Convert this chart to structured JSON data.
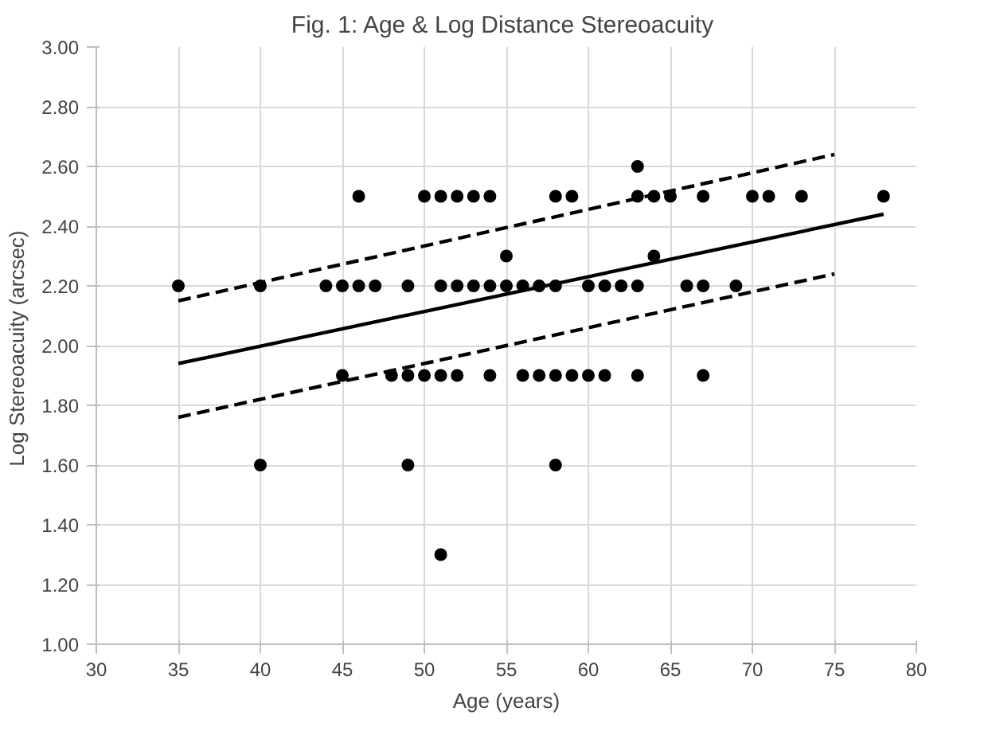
{
  "chart_data": {
    "type": "scatter",
    "title": "Fig. 1: Age & Log Distance  Stereoacuity",
    "xlabel": "Age (years)",
    "ylabel": "Log  Stereoacuity (arcsec)",
    "xlim": [
      30,
      80
    ],
    "xticks": [
      30,
      35,
      40,
      45,
      50,
      55,
      60,
      65,
      70,
      75,
      80
    ],
    "ylim": [
      1.0,
      3.0
    ],
    "yticks": [
      {
        "value": 1.0,
        "label": "1.00"
      },
      {
        "value": 1.2,
        "label": "1.20"
      },
      {
        "value": 1.4,
        "label": "1.40"
      },
      {
        "value": 1.6,
        "label": "1.60"
      },
      {
        "value": 1.8,
        "label": "1.80"
      },
      {
        "value": 2.0,
        "label": "2.00"
      },
      {
        "value": 2.2,
        "label": "2.20"
      },
      {
        "value": 2.4,
        "label": "2.40"
      },
      {
        "value": 2.6,
        "label": "2.60"
      },
      {
        "value": 2.8,
        "label": "2.80"
      },
      {
        "value": 3.0,
        "label": "3.00"
      }
    ],
    "grid": true,
    "series": [
      {
        "marker": "circle",
        "color": "#000000",
        "x": [
          46,
          50,
          51,
          52,
          53,
          54,
          58,
          59,
          63,
          64,
          65,
          67,
          70,
          71,
          73,
          78,
          63,
          55,
          64,
          35,
          40,
          44,
          45,
          46,
          47,
          49,
          51,
          52,
          53,
          54,
          55,
          56,
          57,
          58,
          60,
          61,
          62,
          63,
          66,
          67,
          69,
          45,
          48,
          49,
          50,
          51,
          52,
          54,
          56,
          57,
          58,
          59,
          60,
          61,
          63,
          67,
          40,
          49,
          58,
          51
        ],
        "values": [
          2.5,
          2.5,
          2.5,
          2.5,
          2.5,
          2.5,
          2.5,
          2.5,
          2.5,
          2.5,
          2.5,
          2.5,
          2.5,
          2.5,
          2.5,
          2.5,
          2.6,
          2.3,
          2.3,
          2.2,
          2.2,
          2.2,
          2.2,
          2.2,
          2.2,
          2.2,
          2.2,
          2.2,
          2.2,
          2.2,
          2.2,
          2.2,
          2.2,
          2.2,
          2.2,
          2.2,
          2.2,
          2.2,
          2.2,
          2.2,
          2.2,
          1.9,
          1.9,
          1.9,
          1.9,
          1.9,
          1.9,
          1.9,
          1.9,
          1.9,
          1.9,
          1.9,
          1.9,
          1.9,
          1.9,
          1.9,
          1.6,
          1.6,
          1.6,
          1.3
        ]
      },
      {
        "type": "line",
        "marker": "none",
        "color": "#000000",
        "line_style": "solid",
        "x": [
          35,
          78
        ],
        "values": [
          1.94,
          2.44
        ]
      },
      {
        "type": "line",
        "color": "#000000",
        "line_style": "dashed",
        "x": [
          35,
          75
        ],
        "values": [
          2.15,
          2.64
        ],
        "marker": "none"
      },
      {
        "type": "line",
        "color": "#000000",
        "line_style": "dashed",
        "x": [
          35,
          75
        ],
        "values": [
          1.76,
          2.24
        ],
        "marker": "none"
      }
    ]
  }
}
